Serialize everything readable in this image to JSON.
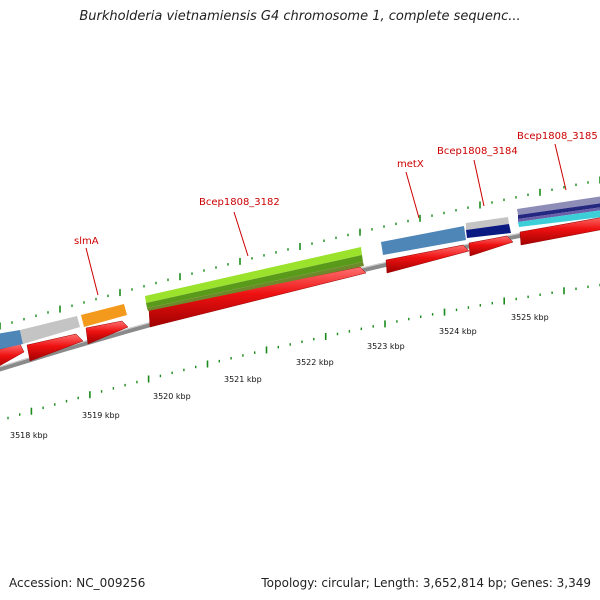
{
  "title": "Burkholderia vietnamiensis G4 chromosome 1, complete sequenc...",
  "footer": {
    "accession": "Accession: NC_009256",
    "summary": "Topology: circular; Length: 3,652,814 bp; Genes: 3,349"
  },
  "colors": {
    "gene_red": "#ee1111",
    "backbone": "#888888",
    "tick_green": "#1a8a1a",
    "label_red": "#cc0000",
    "steel_blue": "#4f86b8",
    "light_gray": "#c4c4c4",
    "orange": "#f39a1c",
    "lime": "#9be22d",
    "olive": "#6d8a2a",
    "navy": "#0a1a80",
    "cyan": "#3dcfd8",
    "lavender": "#8d8db8"
  },
  "gene_labels": [
    {
      "id": "slmA",
      "text": "slmA"
    },
    {
      "id": "bcep1808-3182",
      "text": "Bcep1808_3182"
    },
    {
      "id": "metx",
      "text": "metX"
    },
    {
      "id": "bcep1808-3184",
      "text": "Bcep1808_3184"
    },
    {
      "id": "bcep1808-3185",
      "text": "Bcep1808_3185"
    }
  ],
  "kbp_ticks": [
    "3518 kbp",
    "3519 kbp",
    "3520 kbp",
    "3521 kbp",
    "3522 kbp",
    "3523 kbp",
    "3524 kbp",
    "3525 kbp"
  ]
}
